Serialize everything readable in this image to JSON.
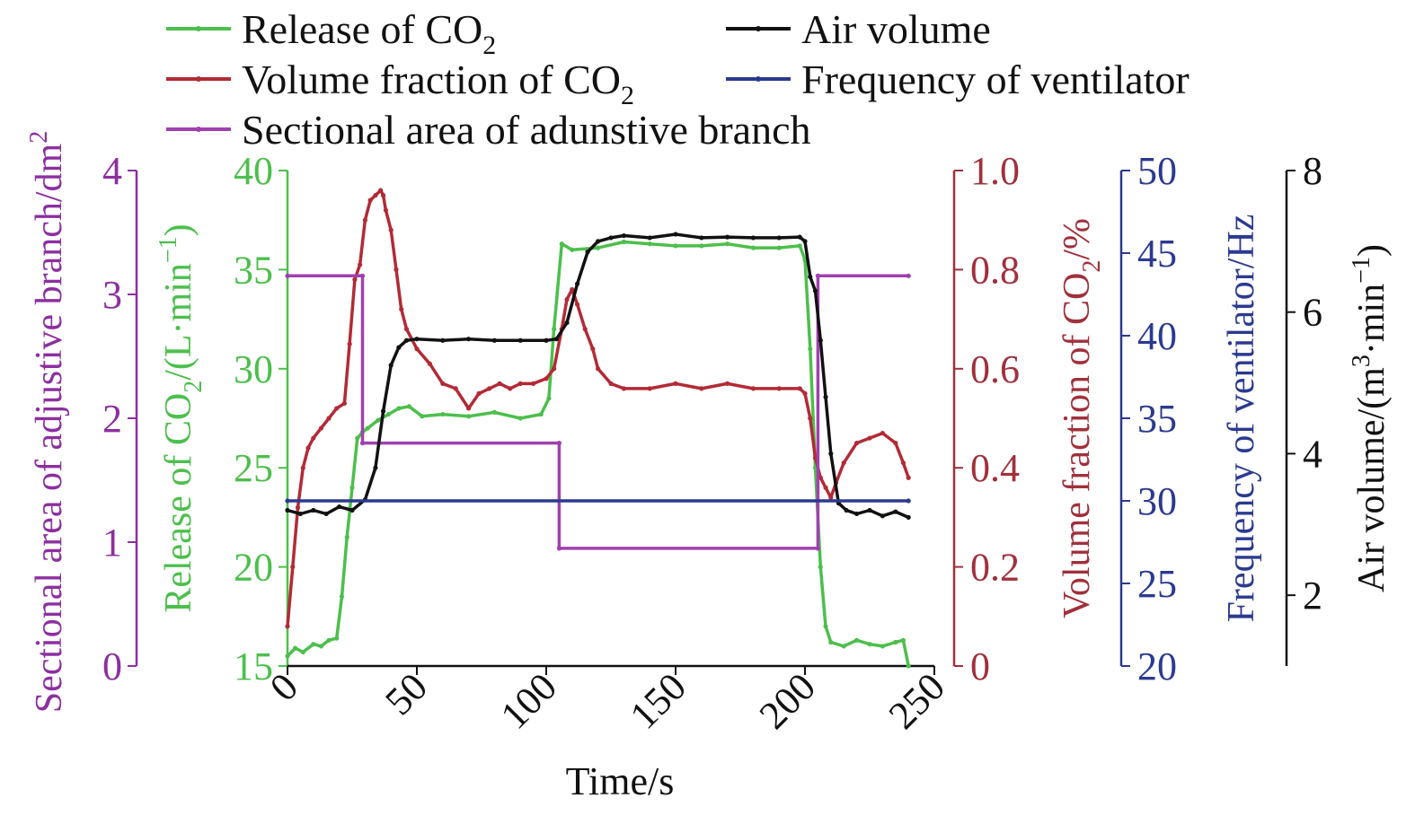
{
  "chart_data": {
    "type": "line",
    "xlabel": "Time/s",
    "x_ticks": [
      "0",
      "50",
      "100",
      "150",
      "200",
      "250"
    ],
    "xlim": [
      0,
      250
    ],
    "legend": [
      {
        "text": "Release of CO",
        "sub": "2",
        "color": "#4cbf4c"
      },
      {
        "text": "Air volume",
        "sub": "",
        "color": "#111111"
      },
      {
        "text": "Volume fraction of CO",
        "sub": "2",
        "color": "#b22a35"
      },
      {
        "text": "Frequency of ventilator",
        "sub": "",
        "color": "#2b3a8f"
      },
      {
        "text": "Sectional area of adunstive branch",
        "sub": "",
        "color": "#a040b0"
      }
    ],
    "axes": {
      "area": {
        "label": "Sectional area of adjustive branch/dm",
        "label_sup": "2",
        "ylim": [
          0,
          4
        ],
        "ticks": [
          "0",
          "1",
          "2",
          "3",
          "4"
        ],
        "color": "#8c2fa0"
      },
      "release": {
        "label_pre": "Release of CO",
        "label_sub": "2",
        "label_mid": "/(L·min",
        "label_sup": "−1",
        "label_post": ")",
        "ylim": [
          15,
          40
        ],
        "ticks": [
          "15",
          "20",
          "25",
          "30",
          "35",
          "40"
        ],
        "color": "#4cbf4c"
      },
      "fraction": {
        "label_pre": "Volume fraction of CO",
        "label_sub": "2",
        "label_post": "/%",
        "ylim": [
          0,
          1.0
        ],
        "ticks": [
          "0",
          "0.2",
          "0.4",
          "0.6",
          "0.8",
          "1.0"
        ],
        "color": "#a0303c"
      },
      "frequency": {
        "label": "Frequency of ventilator/Hz",
        "ylim": [
          20,
          50
        ],
        "ticks": [
          "20",
          "25",
          "30",
          "35",
          "40",
          "45",
          "50"
        ],
        "color": "#2b3a8f"
      },
      "air": {
        "label_pre": "Air volume/(m",
        "label_sup": "3",
        "label_mid": "·min",
        "label_sup2": "−1",
        "label_post": ")",
        "ylim": [
          1,
          8
        ],
        "ticks": [
          "2",
          "4",
          "6",
          "8"
        ],
        "color": "#111111"
      }
    },
    "series": [
      {
        "name": "Release of CO2",
        "axis": "release",
        "color": "#4cbf4c",
        "x": [
          0,
          3,
          6,
          10,
          13,
          16,
          19,
          21,
          23,
          25,
          27,
          29,
          31,
          35,
          39,
          43,
          47,
          52,
          60,
          70,
          80,
          90,
          98,
          101,
          103,
          106,
          110,
          120,
          130,
          140,
          150,
          160,
          170,
          180,
          190,
          198,
          200,
          202,
          204,
          206,
          208,
          210,
          215,
          220,
          225,
          230,
          235,
          238,
          240
        ],
        "y": [
          15.5,
          15.9,
          15.7,
          16.1,
          16.0,
          16.3,
          16.4,
          18.5,
          21.5,
          24.0,
          26.5,
          26.8,
          27.0,
          27.4,
          27.7,
          28.0,
          28.1,
          27.6,
          27.7,
          27.6,
          27.8,
          27.5,
          27.7,
          28.5,
          32.0,
          36.3,
          36.0,
          36.1,
          36.4,
          36.3,
          36.2,
          36.2,
          36.3,
          36.1,
          36.1,
          36.2,
          35.5,
          31.0,
          25.0,
          20.0,
          17.0,
          16.2,
          16.0,
          16.3,
          16.1,
          16.0,
          16.2,
          16.3,
          15.0
        ]
      },
      {
        "name": "Volume fraction of CO2",
        "axis": "fraction",
        "color": "#b22a35",
        "x": [
          0,
          2,
          4,
          6,
          8,
          10,
          13,
          16,
          19,
          22,
          24,
          26,
          28,
          30,
          32,
          34,
          36,
          37,
          38,
          40,
          42,
          44,
          46,
          50,
          55,
          60,
          65,
          70,
          74,
          78,
          82,
          86,
          90,
          95,
          100,
          103,
          106,
          108,
          110,
          112,
          115,
          118,
          120,
          125,
          130,
          140,
          150,
          160,
          170,
          180,
          190,
          198,
          200,
          202,
          204,
          206,
          208,
          210,
          212,
          215,
          220,
          225,
          230,
          235,
          238,
          240
        ],
        "y": [
          0.08,
          0.2,
          0.32,
          0.4,
          0.44,
          0.46,
          0.48,
          0.5,
          0.52,
          0.53,
          0.65,
          0.78,
          0.81,
          0.9,
          0.94,
          0.95,
          0.96,
          0.95,
          0.92,
          0.88,
          0.8,
          0.72,
          0.68,
          0.64,
          0.61,
          0.57,
          0.56,
          0.52,
          0.55,
          0.56,
          0.57,
          0.56,
          0.57,
          0.57,
          0.58,
          0.6,
          0.68,
          0.74,
          0.76,
          0.73,
          0.68,
          0.64,
          0.6,
          0.57,
          0.56,
          0.56,
          0.57,
          0.56,
          0.57,
          0.56,
          0.56,
          0.56,
          0.55,
          0.5,
          0.42,
          0.38,
          0.36,
          0.34,
          0.37,
          0.41,
          0.45,
          0.46,
          0.47,
          0.45,
          0.41,
          0.38
        ]
      },
      {
        "name": "Sectional area of adunstive branch",
        "axis": "area",
        "color": "#a040b0",
        "x": [
          0,
          29,
          29,
          105,
          105,
          205,
          205,
          240
        ],
        "y": [
          3.15,
          3.15,
          1.8,
          1.8,
          0.95,
          0.95,
          3.15,
          3.15
        ]
      },
      {
        "name": "Air volume",
        "axis": "air",
        "color": "#111111",
        "x": [
          0,
          5,
          10,
          15,
          20,
          25,
          30,
          34,
          37,
          40,
          43,
          46,
          50,
          60,
          70,
          80,
          90,
          100,
          104,
          108,
          112,
          116,
          120,
          125,
          130,
          140,
          150,
          160,
          170,
          180,
          190,
          198,
          200,
          202,
          204,
          206,
          208,
          210,
          213,
          216,
          220,
          225,
          230,
          235,
          240
        ],
        "y": [
          3.2,
          3.15,
          3.2,
          3.15,
          3.25,
          3.2,
          3.35,
          3.8,
          4.6,
          5.25,
          5.5,
          5.6,
          5.62,
          5.6,
          5.62,
          5.6,
          5.6,
          5.6,
          5.62,
          5.85,
          6.4,
          6.85,
          7.0,
          7.05,
          7.08,
          7.05,
          7.1,
          7.05,
          7.06,
          7.05,
          7.05,
          7.06,
          7.0,
          6.5,
          6.3,
          5.6,
          4.8,
          4.0,
          3.3,
          3.2,
          3.15,
          3.2,
          3.12,
          3.18,
          3.1
        ]
      },
      {
        "name": "Frequency of ventilator",
        "axis": "frequency",
        "color": "#2b3a8f",
        "x": [
          0,
          240
        ],
        "y": [
          30,
          30
        ]
      }
    ]
  }
}
